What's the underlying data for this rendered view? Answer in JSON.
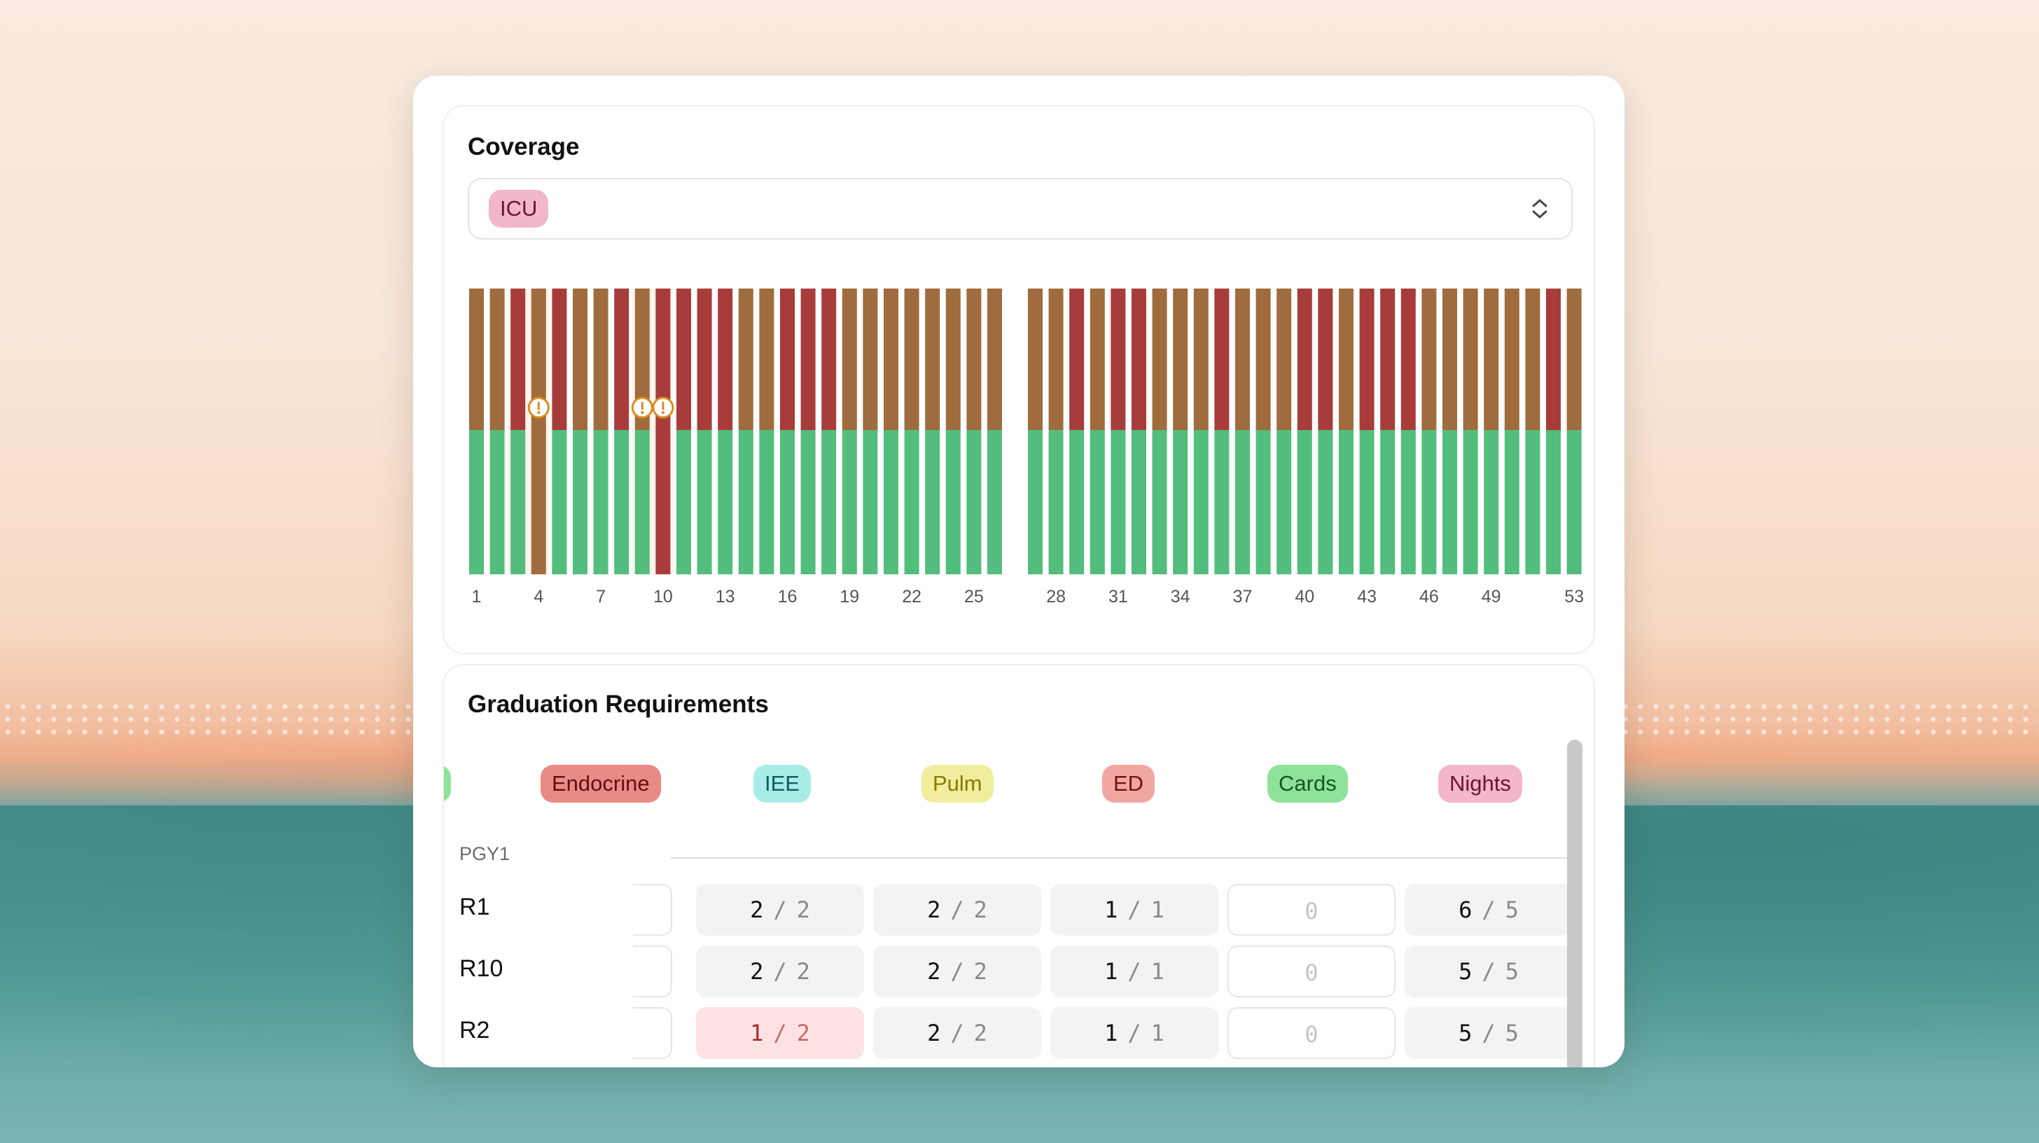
{
  "coverage": {
    "title": "Coverage",
    "select": {
      "selected": "ICU"
    }
  },
  "chart_data": {
    "type": "bar",
    "stacked": true,
    "x": [
      1,
      2,
      3,
      4,
      5,
      6,
      7,
      8,
      9,
      10,
      11,
      12,
      13,
      14,
      15,
      16,
      17,
      18,
      19,
      20,
      21,
      22,
      23,
      24,
      25,
      26,
      27,
      28,
      29,
      30,
      31,
      32,
      33,
      34,
      35,
      36,
      37,
      38,
      39,
      40,
      41,
      42,
      43,
      44,
      45,
      46,
      47,
      48,
      49,
      50,
      51,
      52,
      53
    ],
    "tick_labels": [
      "1",
      "4",
      "7",
      "10",
      "13",
      "16",
      "19",
      "22",
      "25",
      "28",
      "31",
      "34",
      "37",
      "40",
      "43",
      "46",
      "49",
      "53"
    ],
    "tick_weeks": [
      1,
      4,
      7,
      10,
      13,
      16,
      19,
      22,
      25,
      28,
      31,
      34,
      37,
      40,
      43,
      46,
      49,
      53
    ],
    "gap_after_week": 26,
    "series": [
      {
        "color": "#52bd7d",
        "values": [
          1,
          1,
          1,
          0,
          1,
          1,
          1,
          1,
          1,
          0,
          1,
          1,
          1,
          1,
          1,
          1,
          1,
          1,
          1,
          1,
          1,
          1,
          1,
          1,
          1,
          1,
          1,
          1,
          1,
          1,
          1,
          1,
          1,
          1,
          1,
          1,
          1,
          1,
          1,
          1,
          1,
          1,
          1,
          1,
          1,
          1,
          1,
          1,
          1,
          1,
          1,
          1,
          1
        ]
      },
      {
        "color_key": "top",
        "values": [
          1,
          1,
          1,
          1,
          1,
          1,
          1,
          1,
          1,
          1,
          1,
          1,
          1,
          1,
          1,
          1,
          1,
          1,
          1,
          1,
          1,
          1,
          1,
          1,
          1,
          1,
          1,
          1,
          1,
          1,
          1,
          1,
          1,
          1,
          1,
          1,
          1,
          1,
          1,
          1,
          1,
          1,
          1,
          1,
          1,
          1,
          1,
          1,
          1,
          1,
          1,
          1,
          1
        ]
      }
    ],
    "colors": {
      "brown": "#a06c3d",
      "red": "#a83c3a",
      "green": "#52bd7d",
      "warning": "#d98c22",
      "highlight": "#fdf3ea"
    },
    "top_colors": [
      "brown",
      "brown",
      "red",
      "brown",
      "red",
      "brown",
      "brown",
      "red",
      "brown",
      "red",
      "red",
      "red",
      "red",
      "brown",
      "brown",
      "red",
      "red",
      "red",
      "brown",
      "brown",
      "brown",
      "brown",
      "brown",
      "brown",
      "brown",
      "brown",
      "brown",
      "brown",
      "red",
      "brown",
      "red",
      "red",
      "brown",
      "brown",
      "brown",
      "red",
      "brown",
      "brown",
      "brown",
      "red",
      "red",
      "brown",
      "red",
      "red",
      "red",
      "brown",
      "brown",
      "brown",
      "brown",
      "brown",
      "brown",
      "red",
      "brown"
    ],
    "lower_override": {
      "4": "brown",
      "10": "red",
      "9": "green"
    },
    "lower_short_weeks": [
      9
    ],
    "warnings_weeks": [
      4,
      9,
      10
    ],
    "highlight_weeks": [
      3,
      4,
      9,
      10
    ],
    "ylim": [
      0,
      2
    ]
  },
  "graduation": {
    "title": "Graduation Requirements",
    "tabs": [
      "Endocrine",
      "IEE",
      "Pulm",
      "ED",
      "Cards",
      "Nights"
    ],
    "group_label": "PGY1",
    "rows": [
      {
        "name": "R1",
        "cells": [
          {
            "have": "2",
            "need": "2"
          },
          {
            "have": "2",
            "need": "2"
          },
          {
            "have": "1",
            "need": "1"
          },
          {
            "have": "0",
            "need": ""
          },
          {
            "have": "6",
            "need": "5"
          }
        ]
      },
      {
        "name": "R10",
        "cells": [
          {
            "have": "2",
            "need": "2"
          },
          {
            "have": "2",
            "need": "2"
          },
          {
            "have": "1",
            "need": "1"
          },
          {
            "have": "0",
            "need": ""
          },
          {
            "have": "5",
            "need": "5"
          }
        ]
      },
      {
        "name": "R2",
        "cells": [
          {
            "have": "1",
            "need": "2"
          },
          {
            "have": "2",
            "need": "2"
          },
          {
            "have": "1",
            "need": "1"
          },
          {
            "have": "0",
            "need": ""
          },
          {
            "have": "5",
            "need": "5"
          }
        ]
      }
    ]
  }
}
